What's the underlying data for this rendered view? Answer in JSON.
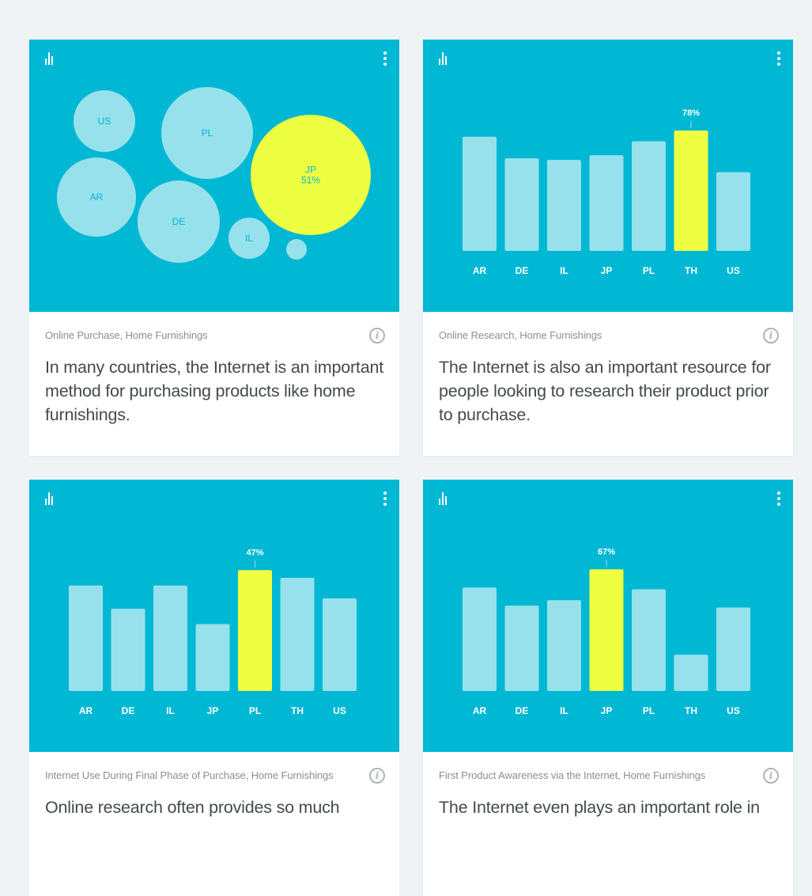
{
  "cards": [
    {
      "tag": "Online Purchase, Home Furnishings",
      "text": "In many countries, the Internet is an important method for purchasing products like home furnishings.",
      "chart_data": {
        "type": "bubble",
        "bubbles": [
          {
            "label": "US",
            "value": null,
            "highlight": false
          },
          {
            "label": "PL",
            "value": null,
            "highlight": false
          },
          {
            "label": "JP",
            "value": "51%",
            "highlight": true
          },
          {
            "label": "AR",
            "value": null,
            "highlight": false
          },
          {
            "label": "DE",
            "value": null,
            "highlight": false
          },
          {
            "label": "IL",
            "value": null,
            "highlight": false
          },
          {
            "label": "",
            "value": null,
            "highlight": false
          }
        ]
      }
    },
    {
      "tag": "Online Research, Home Furnishings",
      "text": "The Internet is also an important resource for people looking to research their product prior to purchase.",
      "chart_data": {
        "type": "bar",
        "categories": [
          "AR",
          "DE",
          "IL",
          "JP",
          "PL",
          "TH",
          "US"
        ],
        "values": [
          74,
          60,
          59,
          62,
          71,
          78,
          51
        ],
        "highlight": "TH",
        "highlight_label": "78%",
        "ylim": [
          0,
          100
        ]
      }
    },
    {
      "tag": "Internet Use During Final Phase of Purchase, Home Furnishings",
      "text": "Online research often provides so much",
      "chart_data": {
        "type": "bar",
        "categories": [
          "AR",
          "DE",
          "IL",
          "JP",
          "PL",
          "TH",
          "US"
        ],
        "values": [
          41,
          32,
          41,
          26,
          47,
          44,
          36
        ],
        "highlight": "PL",
        "highlight_label": "47%",
        "ylim": [
          0,
          60
        ]
      }
    },
    {
      "tag": "First Product Awareness via the Internet, Home Furnishings",
      "text": "The Internet even plays an important role in",
      "chart_data": {
        "type": "bar",
        "categories": [
          "AR",
          "DE",
          "IL",
          "JP",
          "PL",
          "TH",
          "US"
        ],
        "values": [
          57,
          47,
          50,
          67,
          56,
          20,
          46
        ],
        "highlight": "JP",
        "highlight_label": "67%",
        "ylim": [
          0,
          85
        ]
      }
    }
  ],
  "colors": {
    "chart_background": "#00b8d4",
    "bar": "#97e1ec",
    "highlight": "#eeff41",
    "bubble_text": "#00b8d4"
  }
}
